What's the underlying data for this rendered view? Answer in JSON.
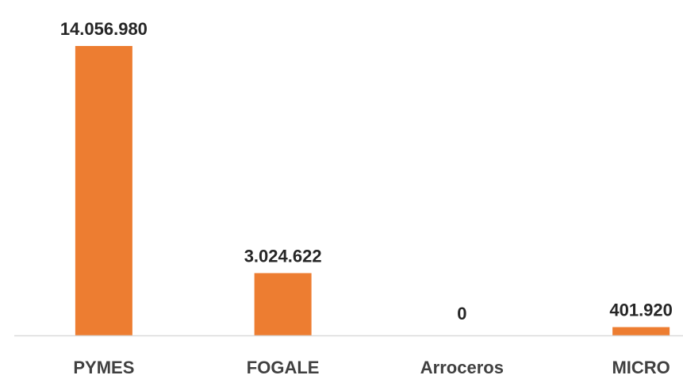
{
  "chart_data": {
    "type": "bar",
    "title": "",
    "xlabel": "",
    "ylabel": "",
    "categories": [
      "PYMES",
      "FOGALE",
      "Arroceros",
      "MICRO"
    ],
    "values": [
      14056980,
      3024622,
      0,
      401920
    ],
    "data_labels": [
      "14.056.980",
      "3.024.622",
      "0",
      "401.920"
    ],
    "ylim": [
      0,
      14056980
    ],
    "grid": false,
    "legend": "none",
    "bar_color": "#ED7D31",
    "axis_color": "#D9D9D9"
  }
}
